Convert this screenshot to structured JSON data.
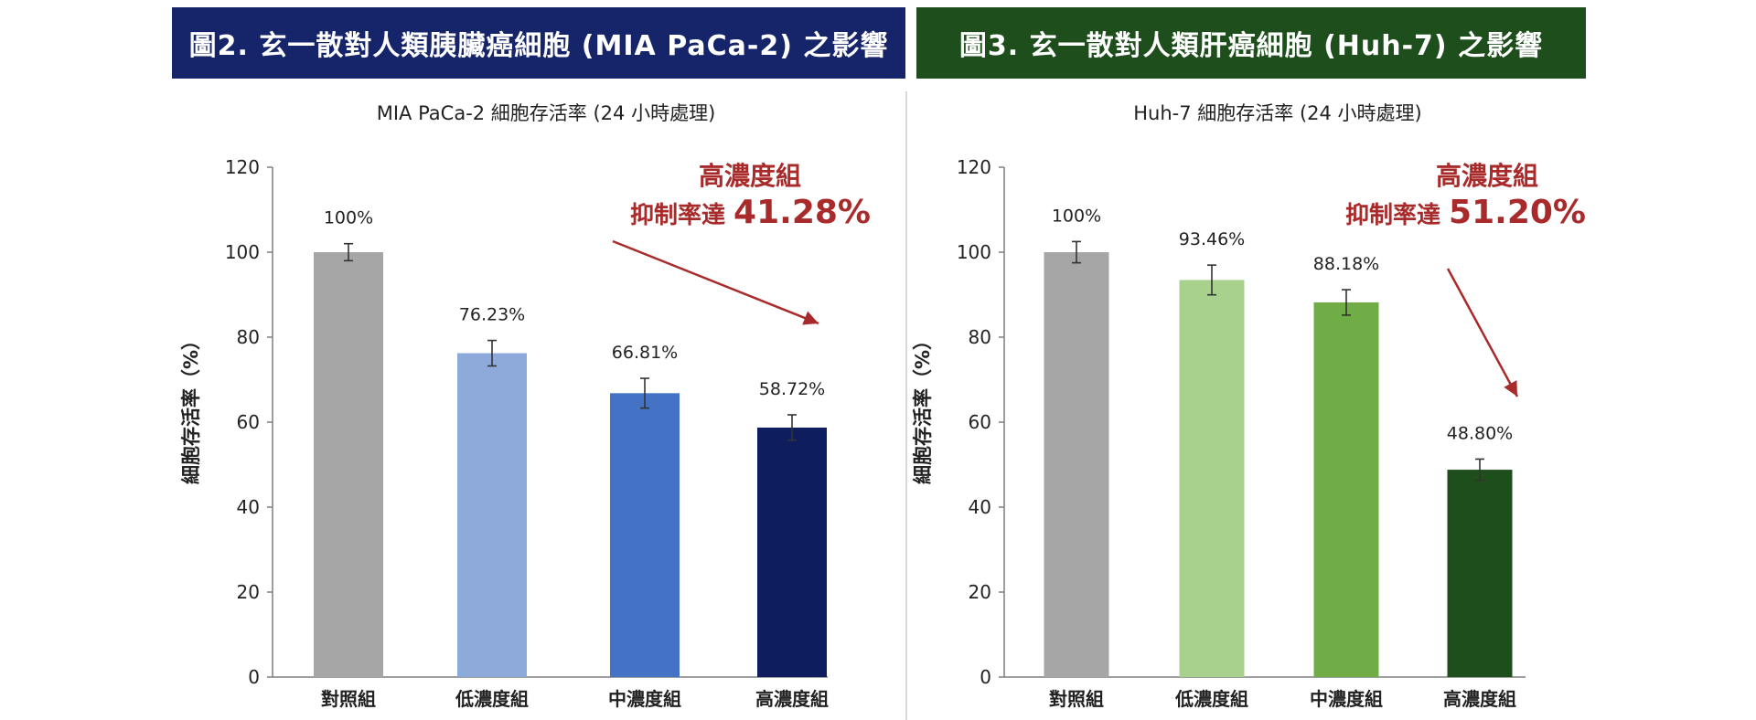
{
  "banners": {
    "left": "圖2. 玄一散對人類胰臟癌細胞 (MIA PaCa-2) 之影響",
    "right": "圖3. 玄一散對人類肝癌細胞 (Huh-7) 之影響"
  },
  "colors": {
    "banner_left": "#16246a",
    "banner_right": "#1e4e1c",
    "annotation": "#a92a2a"
  },
  "chart_data": [
    {
      "type": "bar",
      "title": "MIA PaCa-2 細胞存活率 (24 小時處理)",
      "ylabel": "細胞存活率（%）",
      "xlabel": "",
      "ylim": [
        0,
        120
      ],
      "yticks": [
        0,
        20,
        40,
        60,
        80,
        100,
        120
      ],
      "categories": [
        "對照組",
        "低濃度組",
        "中濃度組",
        "高濃度組"
      ],
      "values": [
        100,
        76.23,
        66.81,
        58.72
      ],
      "errors": [
        2,
        3,
        3.5,
        3
      ],
      "value_labels": [
        "100%",
        "76.23%",
        "66.81%",
        "58.72%"
      ],
      "bar_colors": [
        "#a6a6a6",
        "#8eaadb",
        "#4472c4",
        "#0e1d5e"
      ],
      "annotation": {
        "line1": "高濃度組",
        "line2": "抑制率達",
        "value": "41.28%"
      },
      "grid": false
    },
    {
      "type": "bar",
      "title": "Huh-7 細胞存活率 (24 小時處理)",
      "ylabel": "細胞存活率（%）",
      "xlabel": "",
      "ylim": [
        0,
        120
      ],
      "yticks": [
        0,
        20,
        40,
        60,
        80,
        100,
        120
      ],
      "categories": [
        "對照組",
        "低濃度組",
        "中濃度組",
        "高濃度組"
      ],
      "values": [
        100,
        93.46,
        88.18,
        48.8
      ],
      "errors": [
        2.5,
        3.5,
        3,
        2.5
      ],
      "value_labels": [
        "100%",
        "93.46%",
        "88.18%",
        "48.80%"
      ],
      "bar_colors": [
        "#a6a6a6",
        "#a9d18e",
        "#70ad47",
        "#1e4e1c"
      ],
      "annotation": {
        "line1": "高濃度組",
        "line2": "抑制率達",
        "value": "51.20%"
      },
      "grid": false
    }
  ]
}
